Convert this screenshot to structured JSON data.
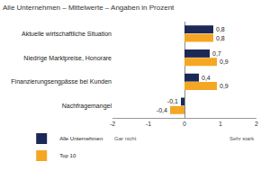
{
  "chart_data": {
    "type": "bar",
    "orientation": "horizontal",
    "title": "Alle Unternehmen – Mittelwerte – Angaben in Prozent",
    "categories": [
      "Aktuelle wirtschaftliche Situation",
      "Niedrige Marktpreise, Honorare",
      "Finanzierungsengpässe bei Kunden",
      "Nachfragemangel"
    ],
    "series": [
      {
        "name": "Alle Unternehmen",
        "color": "#1c2857",
        "values": [
          0.8,
          0.7,
          0.4,
          -0.1
        ],
        "value_labels": [
          "0,8",
          "0,7",
          "0,4",
          "-0,1"
        ]
      },
      {
        "name": "Top 10",
        "color": "#f5a623",
        "values": [
          0.8,
          0.9,
          0.9,
          -0.4
        ],
        "value_labels": [
          "0,8",
          "0,9",
          "0,9",
          "-0,4"
        ]
      }
    ],
    "xlim": [
      -2,
      2
    ],
    "xticks": [
      -2,
      -1,
      0,
      1,
      2
    ],
    "annotations": [
      "Gar nicht",
      "Sehr stark"
    ],
    "data_labels": true,
    "grid": false,
    "legend": "lower left"
  }
}
